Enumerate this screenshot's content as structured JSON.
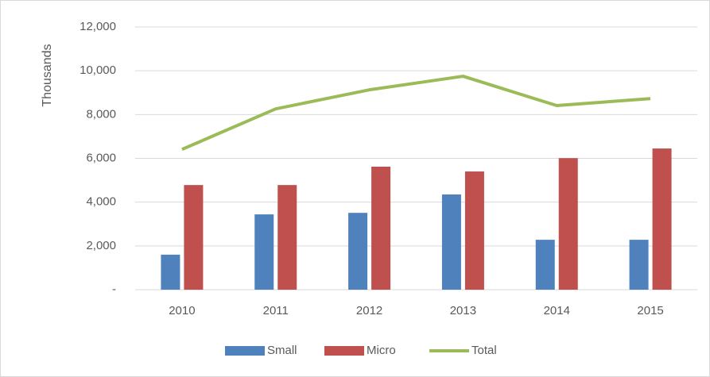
{
  "chart_data": {
    "type": "bar",
    "y_label": "Thousands",
    "categories": [
      "2010",
      "2011",
      "2012",
      "2013",
      "2014",
      "2015"
    ],
    "series": [
      {
        "name": "Small",
        "color": "#4f81bd",
        "type": "bar",
        "values": [
          1600,
          3440,
          3510,
          4350,
          2280,
          2280
        ]
      },
      {
        "name": "Micro",
        "color": "#c0504d",
        "type": "bar",
        "values": [
          4780,
          4780,
          5620,
          5400,
          6010,
          6450
        ]
      },
      {
        "name": "Total",
        "color": "#9bbb59",
        "type": "line",
        "values": [
          6410,
          8260,
          9130,
          9750,
          8410,
          8730
        ]
      }
    ],
    "ylim": [
      0,
      12000
    ],
    "yticks": [
      {
        "value": 0,
        "label": "-"
      },
      {
        "value": 2000,
        "label": "2,000"
      },
      {
        "value": 4000,
        "label": "4,000"
      },
      {
        "value": 6000,
        "label": "6,000"
      },
      {
        "value": 8000,
        "label": "8,000"
      },
      {
        "value": 10000,
        "label": "10,000"
      },
      {
        "value": 12000,
        "label": "12,000"
      }
    ],
    "grid": true,
    "legend": "bottom"
  }
}
